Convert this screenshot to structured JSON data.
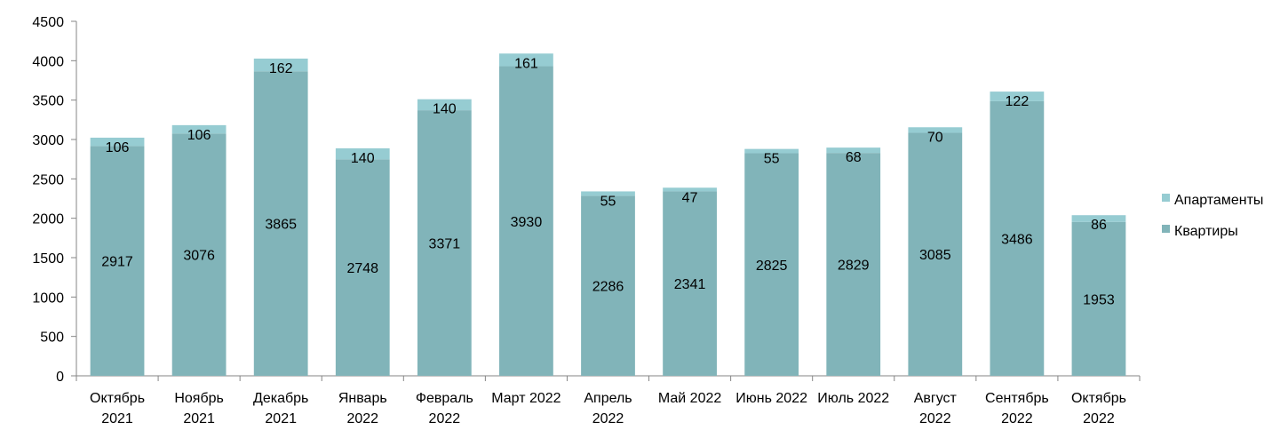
{
  "chart_data": {
    "type": "bar",
    "stacked": true,
    "categories": [
      [
        "Октябрь",
        "2021"
      ],
      [
        "Ноябрь",
        "2021"
      ],
      [
        "Декабрь",
        "2021"
      ],
      [
        "Январь",
        "2022"
      ],
      [
        "Февраль",
        "2022"
      ],
      [
        "Март 2022"
      ],
      [
        "Апрель",
        "2022"
      ],
      [
        "Май 2022"
      ],
      [
        "Июнь 2022"
      ],
      [
        "Июль 2022"
      ],
      [
        "Август",
        "2022"
      ],
      [
        "Сентябрь",
        "2022"
      ],
      [
        "Октябрь",
        "2022"
      ]
    ],
    "series": [
      {
        "name": "Квартиры",
        "color": "#81b4b9",
        "values": [
          2917,
          3076,
          3865,
          2748,
          3371,
          3930,
          2286,
          2341,
          2825,
          2829,
          3085,
          3486,
          1953
        ]
      },
      {
        "name": "Апартаменты",
        "color": "#96ccd2",
        "values": [
          106,
          106,
          162,
          140,
          140,
          161,
          55,
          47,
          55,
          68,
          70,
          122,
          86
        ]
      }
    ],
    "ylim": [
      0,
      4500
    ],
    "yticks": [
      0,
      500,
      1000,
      1500,
      2000,
      2500,
      3000,
      3500,
      4000,
      4500
    ],
    "grid": false,
    "legend_position": "right",
    "legend_order": [
      "Апартаменты",
      "Квартиры"
    ],
    "title": "",
    "xlabel": "",
    "ylabel": ""
  }
}
